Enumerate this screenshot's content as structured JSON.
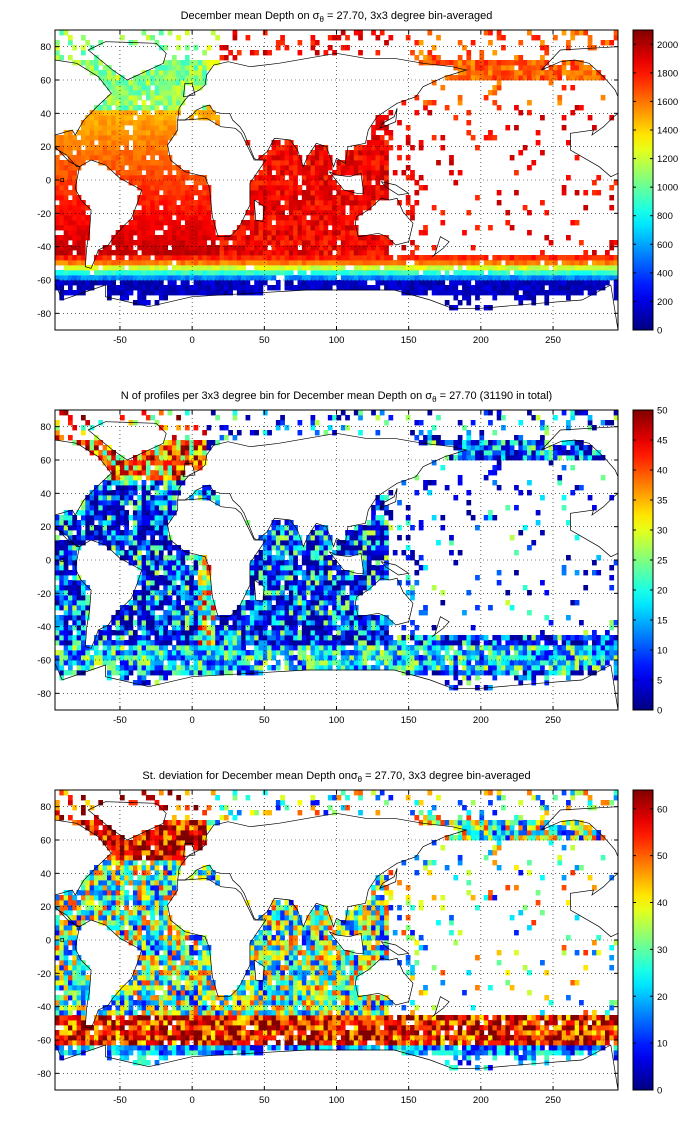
{
  "chart_data": [
    {
      "type": "heatmap",
      "title_prefix": "December mean Depth on ",
      "title_symbol": "σ",
      "title_subscript": "θ",
      "title_suffix": " = 27.70, 3x3 degree bin-averaged",
      "xticks": [
        -50,
        0,
        50,
        100,
        150,
        200,
        250
      ],
      "yticks": [
        80,
        60,
        40,
        20,
        0,
        -20,
        -40,
        -60,
        -80
      ],
      "xlim": [
        -95,
        295
      ],
      "ylim": [
        -90,
        90
      ],
      "grid": "dotted",
      "colorbar": {
        "min": 0,
        "max": 2100,
        "ticks": [
          0,
          200,
          400,
          600,
          800,
          1000,
          1200,
          1400,
          1600,
          1800,
          2000
        ]
      },
      "colormap": "jet"
    },
    {
      "type": "heatmap",
      "title_prefix": "N of profiles per 3x3 degree bin for December mean Depth on ",
      "title_symbol": "σ",
      "title_subscript": "θ",
      "title_suffix": " = 27.70 (31190 in total)",
      "xticks": [
        -50,
        0,
        50,
        100,
        150,
        200,
        250
      ],
      "yticks": [
        80,
        60,
        40,
        20,
        0,
        -20,
        -40,
        -60,
        -80
      ],
      "xlim": [
        -95,
        295
      ],
      "ylim": [
        -90,
        90
      ],
      "grid": "dotted",
      "colorbar": {
        "min": 0,
        "max": 50,
        "ticks": [
          0,
          5,
          10,
          15,
          20,
          25,
          30,
          35,
          40,
          45,
          50
        ]
      },
      "colormap": "jet"
    },
    {
      "type": "heatmap",
      "title_prefix": "St. deviation for December mean Depth on",
      "title_symbol": "σ",
      "title_subscript": "θ",
      "title_suffix": " = 27.70, 3x3 degree bin-averaged",
      "xticks": [
        -50,
        0,
        50,
        100,
        150,
        200,
        250
      ],
      "yticks": [
        80,
        60,
        40,
        20,
        0,
        -20,
        -40,
        -60,
        -80
      ],
      "xlim": [
        -95,
        295
      ],
      "ylim": [
        -90,
        90
      ],
      "grid": "dotted",
      "colorbar": {
        "min": 0,
        "max": 64,
        "ticks": [
          0,
          10,
          20,
          30,
          40,
          50,
          60
        ]
      },
      "colormap": "jet"
    }
  ]
}
